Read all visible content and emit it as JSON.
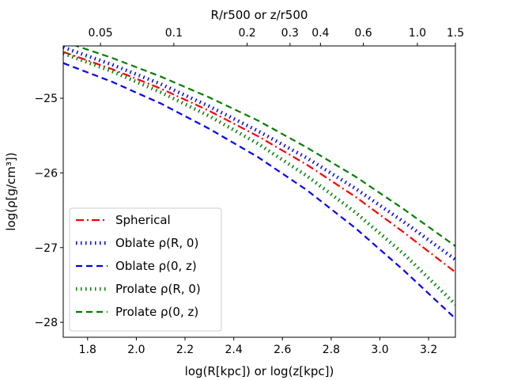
{
  "chart_data": {
    "type": "line",
    "xlabel": "log(R[kpc]) or log(z[kpc])",
    "ylabel": "log(ρ[g/cm³])",
    "top_xlabel": "R/r500 or z/r500",
    "xlim": [
      1.7,
      3.31
    ],
    "ylim": [
      -28.2,
      -24.3
    ],
    "xticks": [
      1.8,
      2.0,
      2.2,
      2.4,
      2.6,
      2.8,
      3.0,
      3.2
    ],
    "xtick_labels": [
      "1.8",
      "2.0",
      "2.2",
      "2.4",
      "2.6",
      "2.8",
      "3.0",
      "3.2"
    ],
    "yticks": [
      -25,
      -26,
      -27,
      -28
    ],
    "ytick_labels": [
      "−25",
      "−26",
      "−27",
      "−28"
    ],
    "top_ticks": [
      {
        "label": "0.05",
        "value": 1.853
      },
      {
        "label": "0.1",
        "value": 2.154
      },
      {
        "label": "0.2",
        "value": 2.455
      },
      {
        "label": "0.3",
        "value": 2.631
      },
      {
        "label": "0.4",
        "value": 2.756
      },
      {
        "label": "0.6",
        "value": 2.932
      },
      {
        "label": "1.0",
        "value": 3.154
      },
      {
        "label": "1.5",
        "value": 3.33
      }
    ],
    "legend_position": "lower-left",
    "series": [
      {
        "name": "Spherical",
        "color": "#ff0000",
        "style": "dashdot",
        "x": [
          1.7,
          1.9,
          2.1,
          2.3,
          2.5,
          2.7,
          2.9,
          3.1,
          3.31
        ],
        "y": [
          -24.38,
          -24.61,
          -24.87,
          -25.17,
          -25.51,
          -25.89,
          -26.32,
          -26.8,
          -27.33
        ]
      },
      {
        "name": "Oblate ρ(R, 0)",
        "color": "#0000ff",
        "style": "dotted",
        "x": [
          1.7,
          1.9,
          2.1,
          2.3,
          2.5,
          2.7,
          2.9,
          3.1,
          3.31
        ],
        "y": [
          -24.32,
          -24.55,
          -24.81,
          -25.11,
          -25.44,
          -25.8,
          -26.21,
          -26.66,
          -27.16
        ]
      },
      {
        "name": "Oblate ρ(0, z)",
        "color": "#0000ff",
        "style": "dashed",
        "x": [
          1.7,
          1.9,
          2.1,
          2.3,
          2.5,
          2.7,
          2.9,
          3.1,
          3.31
        ],
        "y": [
          -24.53,
          -24.78,
          -25.07,
          -25.41,
          -25.79,
          -26.23,
          -26.74,
          -27.31,
          -27.95
        ]
      },
      {
        "name": "Prolate ρ(R, 0)",
        "color": "#008000",
        "style": "dotted",
        "x": [
          1.7,
          1.9,
          2.1,
          2.3,
          2.5,
          2.7,
          2.9,
          3.1,
          3.31
        ],
        "y": [
          -24.4,
          -24.64,
          -24.92,
          -25.24,
          -25.61,
          -26.04,
          -26.53,
          -27.09,
          -27.76
        ]
      },
      {
        "name": "Prolate ρ(0, z)",
        "color": "#008000",
        "style": "dashed",
        "x": [
          1.7,
          1.9,
          2.1,
          2.3,
          2.5,
          2.7,
          2.9,
          3.1,
          3.31
        ],
        "y": [
          -24.24,
          -24.46,
          -24.71,
          -24.99,
          -25.3,
          -25.66,
          -26.05,
          -26.49,
          -26.98
        ]
      }
    ]
  }
}
